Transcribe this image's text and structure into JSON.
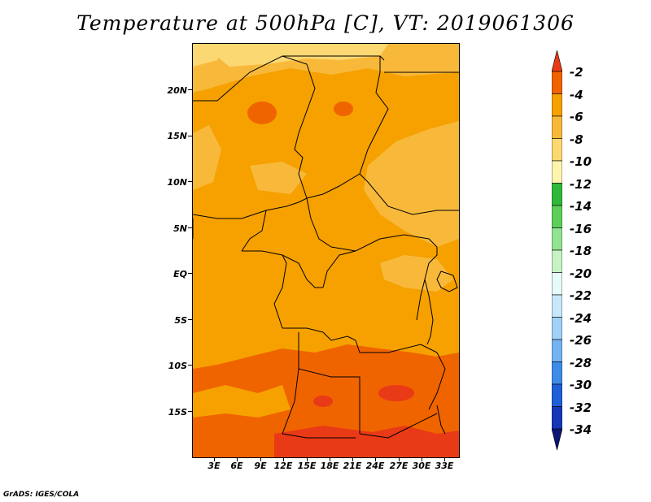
{
  "title": "Temperature at 500hPa [C], VT: 2019061306",
  "credit": "GrADS: IGES/COLA",
  "lat_labels": [
    "20N",
    "15N",
    "10N",
    "5N",
    "EQ",
    "5S",
    "10S",
    "15S"
  ],
  "lon_labels": [
    "3E",
    "6E",
    "9E",
    "12E",
    "15E",
    "18E",
    "21E",
    "24E",
    "27E",
    "30E",
    "33E"
  ],
  "colorbar": {
    "labels": [
      "-2",
      "-4",
      "-6",
      "-8",
      "-10",
      "-12",
      "-14",
      "-16",
      "-18",
      "-20",
      "-22",
      "-24",
      "-26",
      "-28",
      "-30",
      "-32",
      "-34"
    ],
    "colors": [
      "#e83a16",
      "#f06400",
      "#f6a100",
      "#f8b93b",
      "#fcd872",
      "#fef4ae",
      "#2fb83a",
      "#5ccf59",
      "#92e392",
      "#c6f2c4",
      "#e6fbf9",
      "#c8e7fb",
      "#a0d1f7",
      "#73b3f1",
      "#3e8ce8",
      "#1f5fd7",
      "#1438b6",
      "#0b1574"
    ],
    "colors_note": "top arrow (warmest) to bottom arrow (coldest)"
  },
  "map_colors": {
    "land_base": "#f6a100",
    "warm_south": "#f06400",
    "hot_spots": "#e83a16",
    "cool_north": "#f8b93b",
    "coolest_north": "#fcd872",
    "border": "#000000"
  }
}
